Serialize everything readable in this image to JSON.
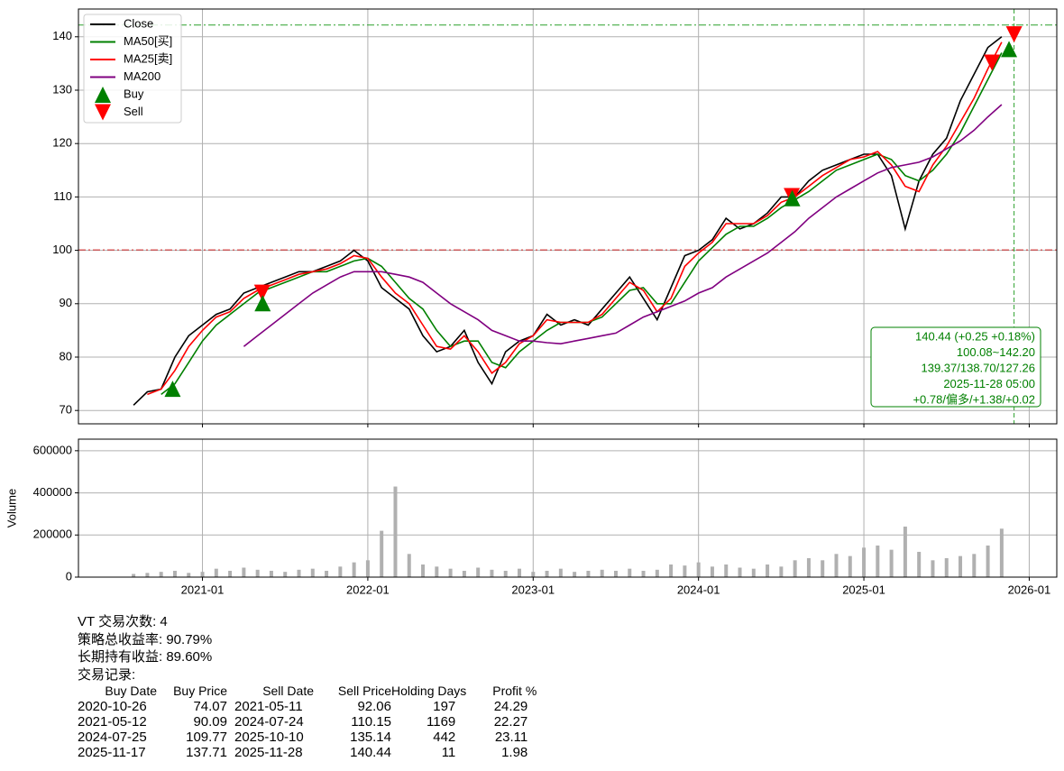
{
  "chart_data": [
    {
      "type": "line",
      "x": [
        "2020-08",
        "2020-09",
        "2020-10",
        "2020-11",
        "2020-12",
        "2021-01",
        "2021-02",
        "2021-03",
        "2021-04",
        "2021-05",
        "2021-06",
        "2021-07",
        "2021-08",
        "2021-09",
        "2021-10",
        "2021-11",
        "2021-12",
        "2022-01",
        "2022-02",
        "2022-03",
        "2022-04",
        "2022-05",
        "2022-06",
        "2022-07",
        "2022-08",
        "2022-09",
        "2022-10",
        "2022-11",
        "2022-12",
        "2023-01",
        "2023-02",
        "2023-03",
        "2023-04",
        "2023-05",
        "2023-06",
        "2023-07",
        "2023-08",
        "2023-09",
        "2023-10",
        "2023-11",
        "2023-12",
        "2024-01",
        "2024-02",
        "2024-03",
        "2024-04",
        "2024-05",
        "2024-06",
        "2024-07",
        "2024-08",
        "2024-09",
        "2024-10",
        "2024-11",
        "2024-12",
        "2025-01",
        "2025-02",
        "2025-03",
        "2025-04",
        "2025-05",
        "2025-06",
        "2025-07",
        "2025-08",
        "2025-09",
        "2025-10",
        "2025-11"
      ],
      "series": [
        {
          "name": "Close",
          "color": "#000000",
          "values": [
            71,
            73.5,
            74,
            80,
            84,
            86,
            88,
            89,
            92,
            93,
            94,
            95,
            96,
            96,
            97,
            98,
            100,
            98,
            93,
            91,
            89,
            84,
            81,
            82,
            85,
            79,
            75,
            81,
            83,
            84,
            88,
            86,
            87,
            86,
            89,
            92,
            95,
            91,
            87,
            93,
            99,
            100,
            102,
            106,
            104,
            105,
            107,
            110,
            110,
            113,
            115,
            116,
            117,
            118,
            118,
            114,
            104,
            113,
            118,
            121,
            128,
            133,
            138,
            140
          ]
        },
        {
          "name": "MA50[买]",
          "color": "#008000",
          "values": [
            null,
            null,
            73,
            75,
            79,
            83,
            86,
            88,
            90,
            92,
            93,
            94,
            95,
            96,
            96,
            97,
            98,
            98.5,
            97,
            94,
            91,
            89,
            85,
            82,
            83,
            83,
            79,
            78,
            81,
            83,
            85,
            86.5,
            86.5,
            86.5,
            87.5,
            90,
            92.5,
            93,
            90,
            90,
            94,
            98,
            100.5,
            103,
            104.5,
            104.5,
            106,
            108,
            109.5,
            111,
            113,
            115,
            116,
            117,
            118,
            117,
            114,
            113,
            115,
            118,
            122,
            127,
            132,
            137
          ]
        },
        {
          "name": "MA25[卖]",
          "color": "#ff0000",
          "values": [
            null,
            73,
            74,
            77.5,
            82,
            85,
            87.5,
            88.5,
            91,
            92.5,
            93.5,
            94.5,
            95.5,
            96,
            96.5,
            97.5,
            99,
            98.5,
            95,
            92,
            90,
            86,
            82,
            81.5,
            84,
            81,
            77,
            79,
            82.5,
            84,
            87,
            86.5,
            86.5,
            86.5,
            88,
            91,
            94,
            92.5,
            88.5,
            91,
            97,
            99.5,
            101.5,
            105,
            105,
            105,
            106.5,
            109,
            110,
            112,
            114,
            115.5,
            117,
            117.5,
            118.5,
            116,
            112,
            111,
            116,
            119.5,
            124,
            128.5,
            134,
            139
          ]
        },
        {
          "name": "MA200",
          "color": "#800080",
          "values": [
            null,
            null,
            null,
            null,
            null,
            null,
            null,
            null,
            82,
            84,
            86,
            88,
            90,
            92,
            93.5,
            95,
            96,
            96,
            96,
            95.5,
            95,
            94,
            92,
            90,
            88.5,
            87,
            85,
            84,
            83,
            83,
            82.7,
            82.5,
            83,
            83.5,
            84,
            84.5,
            86,
            87.5,
            88.5,
            89.5,
            90.5,
            92,
            93,
            95,
            96.5,
            98,
            99.5,
            101.5,
            103.5,
            106,
            108,
            110,
            111.5,
            113,
            114.5,
            115.5,
            116,
            116.5,
            117.5,
            119,
            120.5,
            122.5,
            125,
            127.3
          ]
        }
      ],
      "markers": [
        {
          "name": "Buy",
          "color": "#008000"
        },
        {
          "name": "Sell",
          "color": "#ff0000"
        }
      ],
      "ref_lines": [
        {
          "value": 100.08,
          "color": "#d62728"
        },
        {
          "value": 142.2,
          "color": "#2ca02c"
        }
      ],
      "vline": {
        "x": "2025-11-28",
        "color": "#2ca02c"
      },
      "annotation": [
        "140.44 (+0.25 +0.18%)",
        "100.08~142.20",
        "139.37/138.70/127.26",
        "2025-11-28 05:00",
        "+0.78/偏多/+1.38/+0.02"
      ],
      "xlim": [
        "2020-04",
        "2026-03"
      ],
      "xticks": [
        "2021-01",
        "2022-01",
        "2023-01",
        "2024-01",
        "2025-01",
        "2026-01"
      ],
      "ylim": [
        67.5,
        145.2
      ],
      "yticks": [
        70,
        80,
        90,
        100,
        110,
        120,
        130,
        140
      ],
      "grid": true,
      "legend": "upper left"
    },
    {
      "type": "bar",
      "ylabel": "Volume",
      "color": "#b0b0b0",
      "x": [
        "2020-08",
        "2020-09",
        "2020-10",
        "2020-11",
        "2020-12",
        "2021-01",
        "2021-02",
        "2021-03",
        "2021-04",
        "2021-05",
        "2021-06",
        "2021-07",
        "2021-08",
        "2021-09",
        "2021-10",
        "2021-11",
        "2021-12",
        "2022-01",
        "2022-02",
        "2022-03",
        "2022-04",
        "2022-05",
        "2022-06",
        "2022-07",
        "2022-08",
        "2022-09",
        "2022-10",
        "2022-11",
        "2022-12",
        "2023-01",
        "2023-02",
        "2023-03",
        "2023-04",
        "2023-05",
        "2023-06",
        "2023-07",
        "2023-08",
        "2023-09",
        "2023-10",
        "2023-11",
        "2023-12",
        "2024-01",
        "2024-02",
        "2024-03",
        "2024-04",
        "2024-05",
        "2024-06",
        "2024-07",
        "2024-08",
        "2024-09",
        "2024-10",
        "2024-11",
        "2024-12",
        "2025-01",
        "2025-02",
        "2025-03",
        "2025-04",
        "2025-05",
        "2025-06",
        "2025-07",
        "2025-08",
        "2025-09",
        "2025-10",
        "2025-11"
      ],
      "values": [
        15000,
        20000,
        25000,
        30000,
        20000,
        25000,
        40000,
        30000,
        45000,
        35000,
        30000,
        25000,
        35000,
        40000,
        30000,
        50000,
        70000,
        80000,
        220000,
        430000,
        110000,
        60000,
        50000,
        40000,
        30000,
        45000,
        35000,
        30000,
        40000,
        25000,
        30000,
        40000,
        25000,
        30000,
        35000,
        30000,
        40000,
        30000,
        35000,
        60000,
        55000,
        70000,
        50000,
        60000,
        45000,
        40000,
        60000,
        50000,
        80000,
        90000,
        80000,
        110000,
        100000,
        140000,
        150000,
        130000,
        240000,
        120000,
        80000,
        90000,
        100000,
        110000,
        150000,
        230000
      ],
      "xlim": [
        "2020-04",
        "2026-03"
      ],
      "xticks": [
        "2021-01",
        "2022-01",
        "2023-01",
        "2024-01",
        "2025-01",
        "2026-01"
      ],
      "ylim": [
        0,
        655000
      ],
      "yticks": [
        0,
        200000,
        400000,
        600000
      ],
      "grid": true
    }
  ],
  "summary": [
    "VT 交易次数: 4",
    "策略总收益率: 90.79%",
    "长期持有收益: 89.60%",
    "交易记录:"
  ],
  "trades": {
    "columns": [
      "Buy Date",
      "Buy Price",
      "Sell Date",
      "Sell Price",
      "Holding Days",
      "Profit %"
    ],
    "rows": [
      [
        "2020-10-26",
        74.07,
        "2021-05-11",
        92.06,
        197,
        24.29
      ],
      [
        "2021-05-12",
        90.09,
        "2024-07-24",
        110.15,
        1169,
        22.27
      ],
      [
        "2024-07-25",
        109.77,
        "2025-10-10",
        135.14,
        442,
        23.11
      ],
      [
        "2025-11-17",
        137.71,
        "2025-11-28",
        140.44,
        11,
        1.98
      ]
    ]
  }
}
